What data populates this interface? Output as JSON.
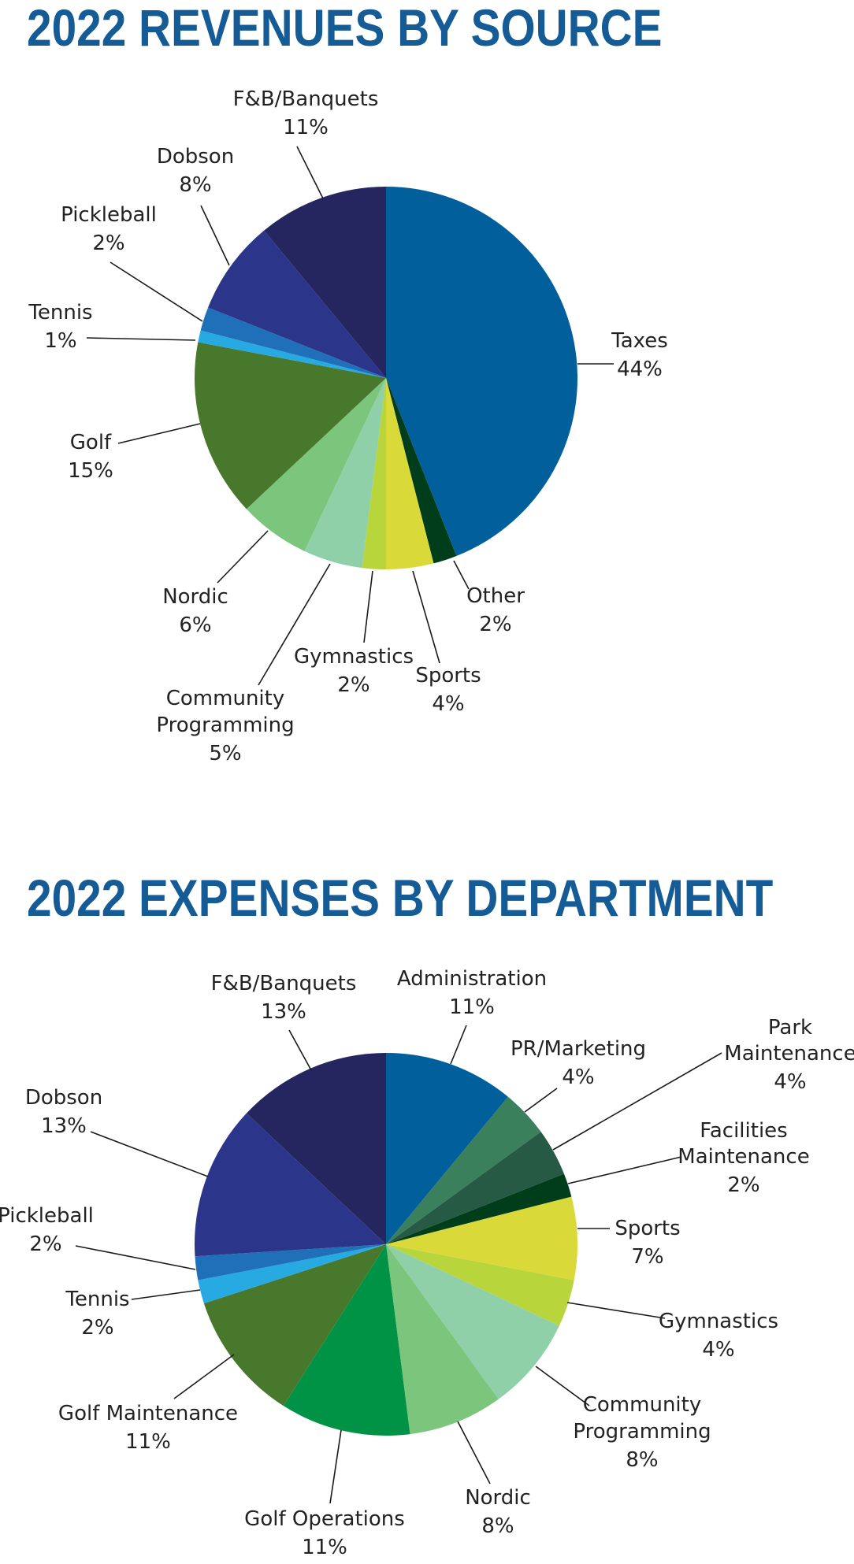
{
  "chart_data": [
    {
      "type": "pie",
      "title": "2022 REVENUES BY SOURCE",
      "unit": "%",
      "slices": [
        {
          "label": "Taxes",
          "value": 44,
          "display": "44%",
          "color": "#015f9c"
        },
        {
          "label": "Other",
          "value": 2,
          "display": "2%",
          "color": "#003d1a"
        },
        {
          "label": "Sports",
          "value": 4,
          "display": "4%",
          "color": "#d9da3a"
        },
        {
          "label": "Gymnastics",
          "value": 2,
          "display": "2%",
          "color": "#b8d53b"
        },
        {
          "label": "Community Programming",
          "value": 5,
          "display": "5%",
          "color": "#8fd0a8"
        },
        {
          "label": "Nordic",
          "value": 6,
          "display": "6%",
          "color": "#7cc57c"
        },
        {
          "label": "Golf",
          "value": 15,
          "display": "15%",
          "color": "#48782b"
        },
        {
          "label": "Tennis",
          "value": 1,
          "display": "1%",
          "color": "#27a9e1"
        },
        {
          "label": "Pickleball",
          "value": 2,
          "display": "2%",
          "color": "#1f70b8"
        },
        {
          "label": "Dobson",
          "value": 8,
          "display": "8%",
          "color": "#2b368b"
        },
        {
          "label": "F&B/Banquets",
          "value": 11,
          "display": "11%",
          "color": "#252560"
        }
      ]
    },
    {
      "type": "pie",
      "title": "2022 EXPENSES BY DEPARTMENT",
      "unit": "%",
      "slices": [
        {
          "label": "Administration",
          "value": 11,
          "display": "11%",
          "color": "#015f9c"
        },
        {
          "label": "PR/Marketing",
          "value": 4,
          "display": "4%",
          "color": "#3a805c"
        },
        {
          "label": "Park Maintenance",
          "value": 4,
          "display": "4%",
          "color": "#275a44"
        },
        {
          "label": "Facilities Maintenance",
          "value": 2,
          "display": "2%",
          "color": "#003d1a"
        },
        {
          "label": "Sports",
          "value": 7,
          "display": "7%",
          "color": "#d9da3a"
        },
        {
          "label": "Gymnastics",
          "value": 4,
          "display": "4%",
          "color": "#b8d53b"
        },
        {
          "label": "Community Programming",
          "value": 8,
          "display": "8%",
          "color": "#8fd0a8"
        },
        {
          "label": "Nordic",
          "value": 8,
          "display": "8%",
          "color": "#7cc57c"
        },
        {
          "label": "Golf Operations",
          "value": 11,
          "display": "11%",
          "color": "#009345"
        },
        {
          "label": "Golf Maintenance",
          "value": 11,
          "display": "11%",
          "color": "#48782b"
        },
        {
          "label": "Tennis",
          "value": 2,
          "display": "2%",
          "color": "#27a9e1"
        },
        {
          "label": "Pickleball",
          "value": 2,
          "display": "2%",
          "color": "#1f70b8"
        },
        {
          "label": "Dobson",
          "value": 13,
          "display": "13%",
          "color": "#2b368b"
        },
        {
          "label": "F&B/Banquets",
          "value": 13,
          "display": "13%",
          "color": "#252560"
        }
      ]
    }
  ]
}
